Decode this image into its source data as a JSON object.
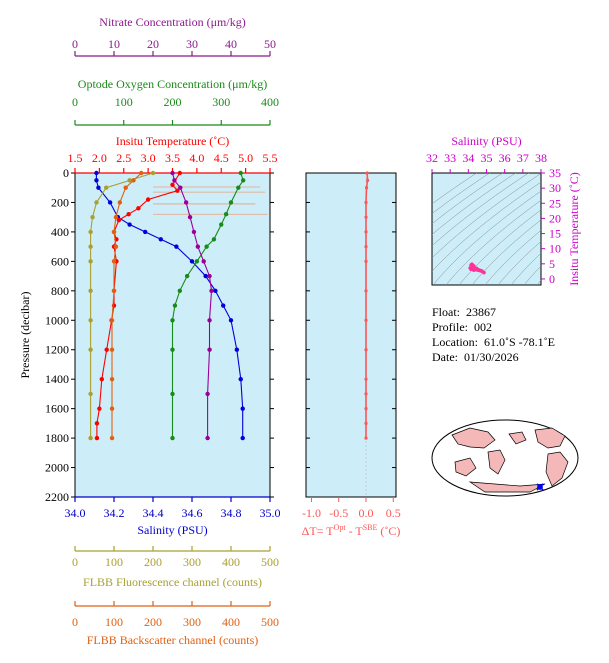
{
  "chart_data": [
    {
      "type": "line",
      "panel": "main-profile",
      "ylabel": "Pressure (decibar)",
      "y_ticks": [
        0,
        200,
        400,
        600,
        800,
        1000,
        1200,
        1400,
        1600,
        1800,
        2000,
        2200
      ],
      "ylim": [
        0,
        2200
      ],
      "y_inverted": true,
      "grid": false,
      "background": "#cdeef8",
      "axes": {
        "nitrate": {
          "label": "Nitrate Concentration (μm/kg)",
          "ticks": [
            "0",
            "10",
            "20",
            "30",
            "40",
            "50"
          ],
          "range": [
            0,
            50
          ],
          "color": "#8b1a8b"
        },
        "oxygen": {
          "label": "Optode Oxygen Concentration (μm/kg)",
          "ticks": [
            "0",
            "100",
            "200",
            "300",
            "400"
          ],
          "range": [
            0,
            400
          ],
          "color": "#1a8a1a"
        },
        "temperature": {
          "label": "Insitu Temperature (˚C)",
          "ticks": [
            "1.5",
            "2.0",
            "2.5",
            "3.0",
            "3.5",
            "4.0",
            "4.5",
            "5.0",
            "5.5"
          ],
          "range": [
            1.5,
            5.5
          ],
          "color": "#ff0000"
        },
        "salinity": {
          "label": "Salinity (PSU)",
          "ticks": [
            "34.0",
            "34.2",
            "34.4",
            "34.6",
            "34.8",
            "35.0"
          ],
          "range": [
            34.0,
            35.0
          ],
          "color": "#0000cc"
        },
        "fluorescence": {
          "label": "FLBB Fluorescence channel (counts)",
          "ticks": [
            "0",
            "100",
            "200",
            "300",
            "400",
            "500"
          ],
          "range": [
            0,
            500
          ],
          "color": "#a8a030"
        },
        "backscatter": {
          "label": "FLBB Backscatter channel (counts)",
          "ticks": [
            "0",
            "100",
            "200",
            "300",
            "400",
            "500"
          ],
          "range": [
            0,
            500
          ],
          "color": "#e06010"
        }
      },
      "series": [
        {
          "axis": "salinity",
          "color": "#0000dd",
          "x": [
            34.11,
            34.11,
            34.12,
            34.18,
            34.22,
            34.28,
            34.36,
            34.44,
            34.52,
            34.6,
            34.67,
            34.72,
            34.76,
            34.8,
            34.83,
            34.85,
            34.86,
            34.86
          ],
          "y": [
            0,
            50,
            100,
            200,
            300,
            350,
            400,
            450,
            500,
            600,
            700,
            800,
            900,
            1000,
            1200,
            1400,
            1600,
            1800
          ]
        },
        {
          "axis": "temperature",
          "color": "#ff0000",
          "x": [
            3.65,
            3.5,
            3.6,
            3.0,
            2.8,
            2.6,
            2.4,
            2.3,
            2.35,
            2.3,
            2.35,
            2.3,
            2.3,
            2.25,
            2.15,
            2.05,
            2.0,
            1.95,
            1.95
          ],
          "y": [
            0,
            80,
            120,
            180,
            240,
            280,
            320,
            400,
            450,
            500,
            600,
            800,
            900,
            1000,
            1200,
            1400,
            1600,
            1700,
            1800
          ]
        },
        {
          "axis": "oxygen",
          "color": "#1a8a1a",
          "x": [
            340,
            345,
            335,
            320,
            310,
            300,
            285,
            270,
            250,
            230,
            215,
            205,
            200,
            200,
            200,
            200
          ],
          "y": [
            0,
            50,
            100,
            200,
            280,
            350,
            450,
            500,
            600,
            700,
            800,
            900,
            1000,
            1200,
            1500,
            1800
          ]
        },
        {
          "axis": "nitrate",
          "color": "#990099",
          "x": [
            25,
            25.5,
            27,
            28.5,
            29.5,
            30.5,
            31.5,
            33,
            34.5,
            35,
            34.5,
            34.5,
            34,
            34
          ],
          "y": [
            0,
            50,
            100,
            200,
            300,
            400,
            500,
            600,
            700,
            800,
            1000,
            1200,
            1500,
            1800
          ]
        },
        {
          "axis": "fluorescence",
          "color": "#a8a030",
          "x": [
            200,
            140,
            80,
            55,
            45,
            40,
            40,
            40,
            40,
            40,
            40,
            40,
            40
          ],
          "y": [
            0,
            50,
            100,
            200,
            300,
            400,
            500,
            600,
            800,
            1000,
            1200,
            1500,
            1800
          ]
        },
        {
          "axis": "backscatter",
          "color": "#e06010",
          "x": [
            170,
            150,
            130,
            115,
            105,
            100,
            105,
            100,
            100,
            95,
            95,
            95,
            95,
            95
          ],
          "y": [
            0,
            50,
            100,
            200,
            300,
            400,
            500,
            600,
            800,
            1000,
            1200,
            1400,
            1600,
            1800
          ]
        }
      ]
    },
    {
      "type": "line",
      "panel": "delta-t",
      "xlabel": "ΔT= T",
      "xlabel_sup1": "Opt",
      "xlabel_mid": " - T",
      "xlabel_sup2": "SBE",
      "xlabel_end": " (˚C)",
      "x_ticks": [
        "-1.0",
        "-0.5",
        "0.0",
        "0.5"
      ],
      "xlim": [
        -1.1,
        0.55
      ],
      "ylim": [
        0,
        2200
      ],
      "y_inverted": true,
      "series": [
        {
          "color": "#ff5555",
          "x": [
            0.02,
            0.03,
            0.01,
            0.0,
            0.0,
            0.0,
            0.0,
            0.0,
            0.0,
            0.0,
            0.0,
            0.0,
            0.0,
            0.0,
            0.0,
            0.0
          ],
          "y": [
            0,
            50,
            100,
            200,
            300,
            400,
            500,
            600,
            800,
            1000,
            1200,
            1400,
            1500,
            1600,
            1700,
            1800
          ]
        }
      ]
    },
    {
      "type": "scatter",
      "panel": "ts-diagram",
      "xlabel": "Salinity (PSU)",
      "ylabel": "Insitu Temperature (˚C)",
      "x_ticks": [
        "32",
        "33",
        "34",
        "35",
        "36",
        "37",
        "38"
      ],
      "y_ticks": [
        "0",
        "5",
        "10",
        "15",
        "20",
        "25",
        "30",
        "35"
      ],
      "xlim": [
        32,
        38
      ],
      "ylim": [
        -2,
        35
      ],
      "color": "#cc00cc",
      "series": [
        {
          "color": "#ff3399",
          "x": [
            34.1,
            34.15,
            34.2,
            34.3,
            34.45,
            34.6,
            34.75,
            34.86,
            34.3,
            34.15,
            34.25,
            34.5,
            34.7
          ],
          "y": [
            3.6,
            4.6,
            4.9,
            4.3,
            3.5,
            3.0,
            2.6,
            2.1,
            2.9,
            3.2,
            3.9,
            3.2,
            2.7
          ]
        }
      ]
    }
  ],
  "info": {
    "float_label": "Float:",
    "float_value": "23867",
    "profile_label": "Profile:",
    "profile_value": "002",
    "location_label": "Location:",
    "location_value": "61.0˚S  -78.1˚E",
    "date_label": "Date:",
    "date_value": "01/30/2026"
  },
  "colors": {
    "panel_bg": "#cdeef8",
    "map_land": "#f4b8b8",
    "map_ocean": "#ffffff",
    "marker": "#0000ff"
  }
}
